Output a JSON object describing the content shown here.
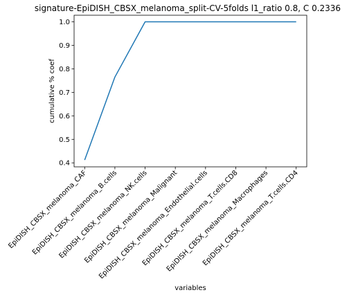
{
  "chart_data": {
    "type": "line",
    "title": "signature-EpiDISH_CBSX_melanoma_split-CV-5folds l1_ratio 0.8, C 0.2336",
    "xlabel": "variables",
    "ylabel": "cumulative % coef",
    "categories": [
      "EpiDISH_CBSX_melanoma_CAF",
      "EpiDISH_CBSX_melanoma_B.cells",
      "EpiDISH_CBSX_melanoma_NK.cells",
      "EpiDISH_CBSX_melanoma_Malignant",
      "EpiDISH_CBSX_melanoma_Endothelial.cells",
      "EpiDISH_CBSX_melanoma_T.cells.CD8",
      "EpiDISH_CBSX_melanoma_Macrophages",
      "EpiDISH_CBSX_melanoma_T.cells.CD4"
    ],
    "series": [
      {
        "values": [
          0.412,
          0.765,
          1.0,
          1.0,
          1.0,
          1.0,
          1.0,
          1.0
        ]
      }
    ],
    "ylim": [
      0.383,
      1.028
    ],
    "yticks": [
      "0.4",
      "0.5",
      "0.6",
      "0.7",
      "0.8",
      "0.9",
      "1.0"
    ],
    "grid": false,
    "line_color": "#1f77b4"
  }
}
